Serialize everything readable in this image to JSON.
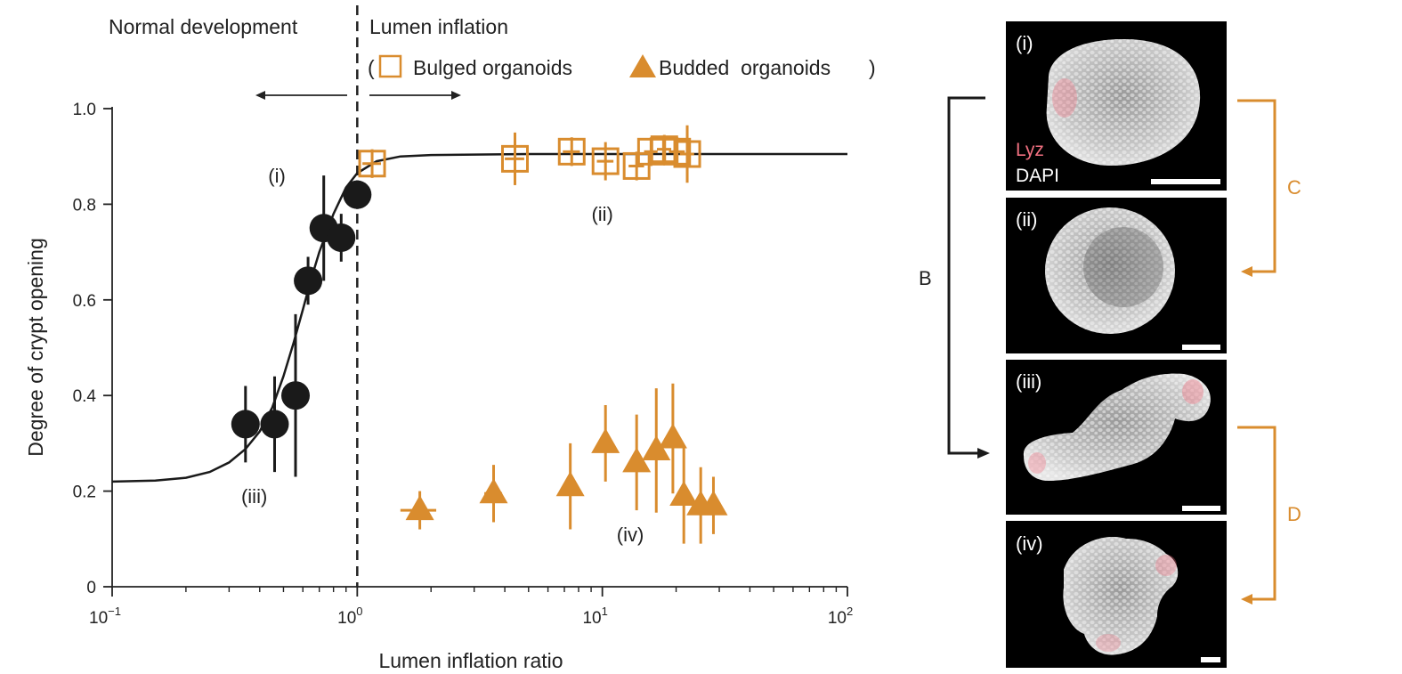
{
  "chart_data": {
    "type": "scatter",
    "xscale": "log",
    "xlim": [
      0.1,
      100
    ],
    "ylim": [
      0,
      1.0
    ],
    "xlabel": "Lumen inflation ratio",
    "ylabel": "Degree of crypt opening",
    "xticks": [
      {
        "value": 0.1,
        "base": "10",
        "exp": "−1"
      },
      {
        "value": 1,
        "base": "10",
        "exp": "0"
      },
      {
        "value": 10,
        "base": "10",
        "exp": "1"
      },
      {
        "value": 100,
        "base": "10",
        "exp": "2"
      }
    ],
    "yticks": [
      {
        "value": 0,
        "label": "0"
      },
      {
        "value": 0.2,
        "label": "0.2"
      },
      {
        "value": 0.4,
        "label": "0.4"
      },
      {
        "value": 0.6,
        "label": "0.6"
      },
      {
        "value": 0.8,
        "label": "0.8"
      },
      {
        "value": 1.0,
        "label": "1.0"
      }
    ],
    "regions": {
      "left_label": "Normal development",
      "right_label": "Lumen inflation",
      "divider_x": 1.0
    },
    "legend": {
      "open_paren": "(",
      "close_paren": ")",
      "items": [
        {
          "label": "Bulged organoids",
          "marker": "open-square"
        },
        {
          "label": "Budded  organoids",
          "marker": "filled-triangle"
        }
      ]
    },
    "series": [
      {
        "marker": "filled-circle",
        "color": "#1a1a1a",
        "points": [
          {
            "x": 0.35,
            "y": 0.34,
            "yerr": 0.08
          },
          {
            "x": 0.46,
            "y": 0.34,
            "yerr": 0.1
          },
          {
            "x": 0.56,
            "y": 0.4,
            "yerr": 0.17
          },
          {
            "x": 0.63,
            "y": 0.64,
            "yerr": 0.05
          },
          {
            "x": 0.73,
            "y": 0.75,
            "yerr": 0.11
          },
          {
            "x": 0.86,
            "y": 0.73,
            "yerr": 0.05
          },
          {
            "x": 1.0,
            "y": 0.82,
            "yerr": 0.03
          }
        ]
      },
      {
        "label": "Bulged organoids",
        "marker": "open-square",
        "color": "#d98c2e",
        "points": [
          {
            "x": 1.15,
            "y": 0.885,
            "yerr": 0.03,
            "xerr": 0.1
          },
          {
            "x": 4.4,
            "y": 0.895,
            "yerr": 0.055,
            "xerr": 0.4
          },
          {
            "x": 7.5,
            "y": 0.91,
            "yerr": 0.03,
            "xerr": 0.6
          },
          {
            "x": 10.3,
            "y": 0.89,
            "yerr": 0.04,
            "xerr": 0.8
          },
          {
            "x": 13.8,
            "y": 0.88,
            "yerr": 0.03,
            "xerr": 1.0
          },
          {
            "x": 15.8,
            "y": 0.91,
            "yerr": 0.03,
            "xerr": 1.0
          },
          {
            "x": 17.9,
            "y": 0.915,
            "yerr": 0.03,
            "xerr": 1.2
          },
          {
            "x": 20.2,
            "y": 0.91,
            "yerr": 0.03,
            "xerr": 1.5
          },
          {
            "x": 22.2,
            "y": 0.905,
            "yerr": 0.06,
            "xerr": 1.5
          }
        ]
      },
      {
        "label": "Budded  organoids",
        "marker": "filled-triangle",
        "color": "#d98c2e",
        "points": [
          {
            "x": 1.8,
            "y": 0.16,
            "yerr": 0.04,
            "xerr": 0.3
          },
          {
            "x": 3.6,
            "y": 0.195,
            "yerr": 0.06,
            "xerr": 0.3
          },
          {
            "x": 7.4,
            "y": 0.21,
            "yerr": 0.09,
            "xerr": 0.5
          },
          {
            "x": 10.3,
            "y": 0.3,
            "yerr": 0.08,
            "xerr": 0.6
          },
          {
            "x": 13.8,
            "y": 0.26,
            "yerr": 0.1,
            "xerr": 0.8
          },
          {
            "x": 16.6,
            "y": 0.285,
            "yerr": 0.13,
            "xerr": 0.8
          },
          {
            "x": 19.4,
            "y": 0.31,
            "yerr": 0.115,
            "xerr": 1.0
          },
          {
            "x": 21.5,
            "y": 0.19,
            "yerr": 0.1,
            "xerr": 1.0
          },
          {
            "x": 25.2,
            "y": 0.17,
            "yerr": 0.08,
            "xerr": 1.2
          },
          {
            "x": 28.4,
            "y": 0.17,
            "yerr": 0.06,
            "xerr": 1.2
          }
        ]
      }
    ],
    "fit_curve": {
      "color": "#1a1a1a",
      "points": [
        [
          0.1,
          0.22
        ],
        [
          0.15,
          0.222
        ],
        [
          0.2,
          0.228
        ],
        [
          0.25,
          0.24
        ],
        [
          0.3,
          0.26
        ],
        [
          0.35,
          0.288
        ],
        [
          0.4,
          0.325
        ],
        [
          0.45,
          0.375
        ],
        [
          0.5,
          0.44
        ],
        [
          0.55,
          0.51
        ],
        [
          0.6,
          0.58
        ],
        [
          0.65,
          0.645
        ],
        [
          0.7,
          0.7
        ],
        [
          0.8,
          0.78
        ],
        [
          0.9,
          0.835
        ],
        [
          1.0,
          0.865
        ],
        [
          1.2,
          0.89
        ],
        [
          1.5,
          0.9
        ],
        [
          2.0,
          0.903
        ],
        [
          5.0,
          0.905
        ],
        [
          100,
          0.905
        ]
      ]
    },
    "annotations": [
      {
        "text": "(i)",
        "x": 0.47,
        "y": 0.845
      },
      {
        "text": "(ii)",
        "x": 10.0,
        "y": 0.765
      },
      {
        "text": "(iii)",
        "x": 0.38,
        "y": 0.175
      },
      {
        "text": "(iv)",
        "x": 13.0,
        "y": 0.095
      }
    ]
  },
  "panels": {
    "bracket_b": "B",
    "bracket_c": "C",
    "bracket_d": "D",
    "legend_lyz": "Lyz",
    "legend_dapi": "DAPI",
    "items": [
      {
        "label": "(i)"
      },
      {
        "label": "(ii)"
      },
      {
        "label": "(iii)"
      },
      {
        "label": "(iv)"
      }
    ]
  },
  "colors": {
    "orange": "#d98c2e",
    "black": "#1a1a1a",
    "lyz": "#f07080"
  }
}
